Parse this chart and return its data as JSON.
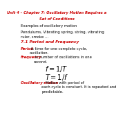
{
  "title_line1": "Unit 4 – Chapter 7: Oscillatory Motion Requires a",
  "title_line2": "Set of Conditions",
  "examples_header": "Examples of oscillatory motion",
  "examples_body": "Pendulums, Vibrating spring, string, vibrating\nruler, smoke …",
  "section_header": "7.1 Period and Frequency",
  "period_label": "Period",
  "period_text": " is time for one complete cycle,\noscillation.",
  "frequency_label": "Frequency",
  "frequency_text": " is number of oscillations in one\nsecond.",
  "formula1": "$f=1/T$",
  "formula2": "$T=1/f$",
  "osc_label": "Oscillatory motion",
  "osc_text": " – Motion with period of\neach cycle is constant. It is repeated and\npredictable.",
  "bg_color": "#ffffff",
  "red_color": "#cc0000",
  "black_color": "#000000",
  "title_fontsize": 3.8,
  "body_fontsize": 3.8,
  "header_fontsize": 4.2,
  "formula_fontsize": 7.0
}
